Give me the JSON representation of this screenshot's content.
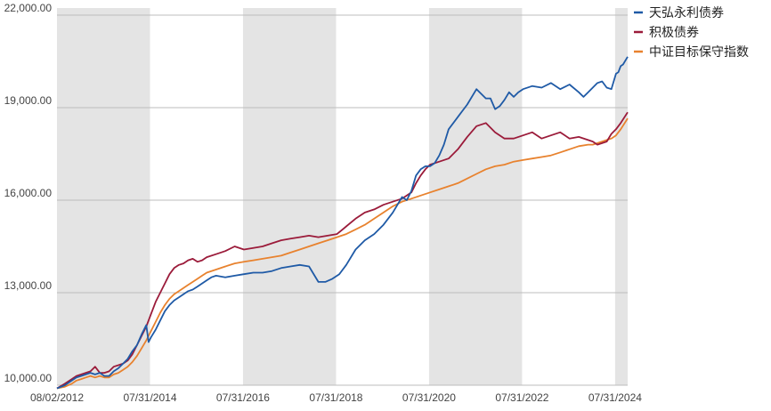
{
  "chart_data": {
    "type": "line",
    "title": "",
    "xlabel": "",
    "ylabel": "",
    "ylim": [
      10000,
      22000
    ],
    "y_ticks": [
      "10,000.00",
      "13,000.00",
      "16,000.00",
      "19,000.00",
      "22,000.00"
    ],
    "y_tick_values": [
      10000,
      13000,
      16000,
      19000,
      22000
    ],
    "x_ticks": [
      "08/02/2012",
      "07/31/2014",
      "07/31/2016",
      "07/31/2018",
      "07/31/2020",
      "07/31/2022",
      "07/31/2024"
    ],
    "x_range": [
      2012.58,
      2024.85
    ],
    "shaded_periods": [
      [
        2012.58,
        2014.58
      ],
      [
        2016.58,
        2018.58
      ],
      [
        2020.58,
        2022.58
      ],
      [
        2024.58,
        2024.85
      ]
    ],
    "grid": "horizontal",
    "legend_position": "top-right",
    "series": [
      {
        "name": "天弘永利债券",
        "color": "#1f5aa6",
        "x": [
          2012.58,
          2012.75,
          2012.9,
          2013.0,
          2013.1,
          2013.2,
          2013.3,
          2013.4,
          2013.5,
          2013.6,
          2013.7,
          2013.8,
          2013.9,
          2014.0,
          2014.1,
          2014.2,
          2014.3,
          2014.4,
          2014.5,
          2014.55,
          2014.6,
          2014.7,
          2014.8,
          2014.9,
          2015.0,
          2015.1,
          2015.2,
          2015.3,
          2015.4,
          2015.5,
          2015.6,
          2015.7,
          2015.8,
          2015.9,
          2016.0,
          2016.2,
          2016.4,
          2016.6,
          2016.8,
          2017.0,
          2017.2,
          2017.4,
          2017.6,
          2017.8,
          2018.0,
          2018.2,
          2018.35,
          2018.5,
          2018.65,
          2018.8,
          2019.0,
          2019.2,
          2019.4,
          2019.6,
          2019.8,
          2020.0,
          2020.1,
          2020.2,
          2020.3,
          2020.4,
          2020.5,
          2020.6,
          2020.7,
          2020.8,
          2020.9,
          2021.0,
          2021.2,
          2021.4,
          2021.6,
          2021.7,
          2021.8,
          2021.9,
          2022.0,
          2022.1,
          2022.2,
          2022.3,
          2022.4,
          2022.5,
          2022.6,
          2022.8,
          2023.0,
          2023.2,
          2023.4,
          2023.6,
          2023.8,
          2023.9,
          2024.0,
          2024.1,
          2024.2,
          2024.3,
          2024.4,
          2024.5,
          2024.6,
          2024.65,
          2024.7,
          2024.75,
          2024.85
        ],
        "values": [
          9900,
          10000,
          10150,
          10250,
          10300,
          10350,
          10400,
          10350,
          10400,
          10300,
          10300,
          10450,
          10550,
          10700,
          10850,
          11100,
          11300,
          11650,
          11950,
          11400,
          11550,
          11800,
          12100,
          12400,
          12600,
          12750,
          12850,
          12950,
          13050,
          13100,
          13200,
          13300,
          13400,
          13500,
          13550,
          13500,
          13550,
          13600,
          13650,
          13650,
          13700,
          13800,
          13850,
          13900,
          13850,
          13350,
          13350,
          13450,
          13600,
          13900,
          14400,
          14700,
          14900,
          15200,
          15600,
          16100,
          16000,
          16300,
          16800,
          17000,
          17100,
          17100,
          17200,
          17450,
          17800,
          18300,
          18700,
          19100,
          19600,
          19450,
          19300,
          19300,
          18950,
          19050,
          19250,
          19500,
          19350,
          19500,
          19600,
          19700,
          19650,
          19800,
          19600,
          19750,
          19500,
          19350,
          19500,
          19650,
          19800,
          19850,
          19650,
          19600,
          20100,
          20150,
          20350,
          20400,
          20650
        ]
      },
      {
        "name": "积极债券",
        "color": "#9b1b3a",
        "x": [
          2012.58,
          2012.75,
          2012.9,
          2013.0,
          2013.1,
          2013.2,
          2013.3,
          2013.4,
          2013.5,
          2013.6,
          2013.7,
          2013.8,
          2013.9,
          2014.0,
          2014.1,
          2014.2,
          2014.3,
          2014.4,
          2014.5,
          2014.6,
          2014.7,
          2014.8,
          2014.9,
          2015.0,
          2015.1,
          2015.2,
          2015.3,
          2015.4,
          2015.5,
          2015.6,
          2015.7,
          2015.8,
          2016.0,
          2016.2,
          2016.4,
          2016.6,
          2016.8,
          2017.0,
          2017.2,
          2017.4,
          2017.6,
          2017.8,
          2018.0,
          2018.2,
          2018.4,
          2018.6,
          2018.8,
          2019.0,
          2019.2,
          2019.4,
          2019.6,
          2019.8,
          2020.0,
          2020.1,
          2020.2,
          2020.3,
          2020.4,
          2020.5,
          2020.6,
          2020.8,
          2021.0,
          2021.2,
          2021.4,
          2021.6,
          2021.8,
          2022.0,
          2022.2,
          2022.4,
          2022.6,
          2022.8,
          2023.0,
          2023.2,
          2023.4,
          2023.6,
          2023.8,
          2024.0,
          2024.1,
          2024.2,
          2024.3,
          2024.4,
          2024.5,
          2024.6,
          2024.7,
          2024.85
        ],
        "values": [
          9900,
          10050,
          10200,
          10300,
          10350,
          10400,
          10450,
          10600,
          10400,
          10400,
          10450,
          10600,
          10650,
          10700,
          10800,
          11000,
          11300,
          11600,
          11900,
          12300,
          12700,
          13000,
          13300,
          13600,
          13800,
          13900,
          13950,
          14050,
          14100,
          14000,
          14050,
          14150,
          14250,
          14350,
          14500,
          14400,
          14450,
          14500,
          14600,
          14700,
          14750,
          14800,
          14850,
          14800,
          14850,
          14900,
          15150,
          15400,
          15600,
          15700,
          15850,
          15950,
          16050,
          16150,
          16250,
          16550,
          16800,
          17000,
          17150,
          17250,
          17350,
          17650,
          18050,
          18400,
          18500,
          18200,
          18000,
          18000,
          18100,
          18200,
          18000,
          18100,
          18200,
          18000,
          18050,
          17950,
          17900,
          17800,
          17850,
          17900,
          18150,
          18300,
          18500,
          18850
        ]
      },
      {
        "name": "中证目标保守指数",
        "color": "#e8822e",
        "x": [
          2012.58,
          2012.75,
          2012.9,
          2013.0,
          2013.1,
          2013.2,
          2013.3,
          2013.4,
          2013.5,
          2013.6,
          2013.7,
          2013.8,
          2013.9,
          2014.0,
          2014.1,
          2014.2,
          2014.3,
          2014.4,
          2014.5,
          2014.6,
          2014.7,
          2014.8,
          2014.9,
          2015.0,
          2015.1,
          2015.2,
          2015.3,
          2015.4,
          2015.5,
          2015.6,
          2015.7,
          2015.8,
          2016.0,
          2016.2,
          2016.4,
          2016.6,
          2016.8,
          2017.0,
          2017.2,
          2017.4,
          2017.6,
          2017.8,
          2018.0,
          2018.2,
          2018.4,
          2018.6,
          2018.8,
          2019.0,
          2019.2,
          2019.4,
          2019.6,
          2019.8,
          2020.0,
          2020.2,
          2020.4,
          2020.6,
          2020.8,
          2021.0,
          2021.2,
          2021.4,
          2021.6,
          2021.8,
          2022.0,
          2022.2,
          2022.4,
          2022.6,
          2022.8,
          2023.0,
          2023.2,
          2023.4,
          2023.6,
          2023.8,
          2024.0,
          2024.1,
          2024.2,
          2024.3,
          2024.4,
          2024.5,
          2024.6,
          2024.7,
          2024.85
        ],
        "values": [
          9900,
          9950,
          10050,
          10150,
          10200,
          10250,
          10300,
          10250,
          10300,
          10250,
          10250,
          10350,
          10400,
          10500,
          10600,
          10750,
          10950,
          11200,
          11450,
          11750,
          12050,
          12350,
          12600,
          12800,
          12950,
          13050,
          13150,
          13250,
          13350,
          13450,
          13550,
          13650,
          13750,
          13850,
          13950,
          14000,
          14050,
          14100,
          14150,
          14200,
          14300,
          14400,
          14500,
          14600,
          14700,
          14800,
          14900,
          15050,
          15200,
          15400,
          15600,
          15800,
          15950,
          16050,
          16150,
          16250,
          16350,
          16450,
          16550,
          16700,
          16850,
          17000,
          17100,
          17150,
          17250,
          17300,
          17350,
          17400,
          17450,
          17550,
          17650,
          17750,
          17800,
          17800,
          17850,
          17900,
          17950,
          18000,
          18100,
          18300,
          18650
        ]
      }
    ]
  }
}
